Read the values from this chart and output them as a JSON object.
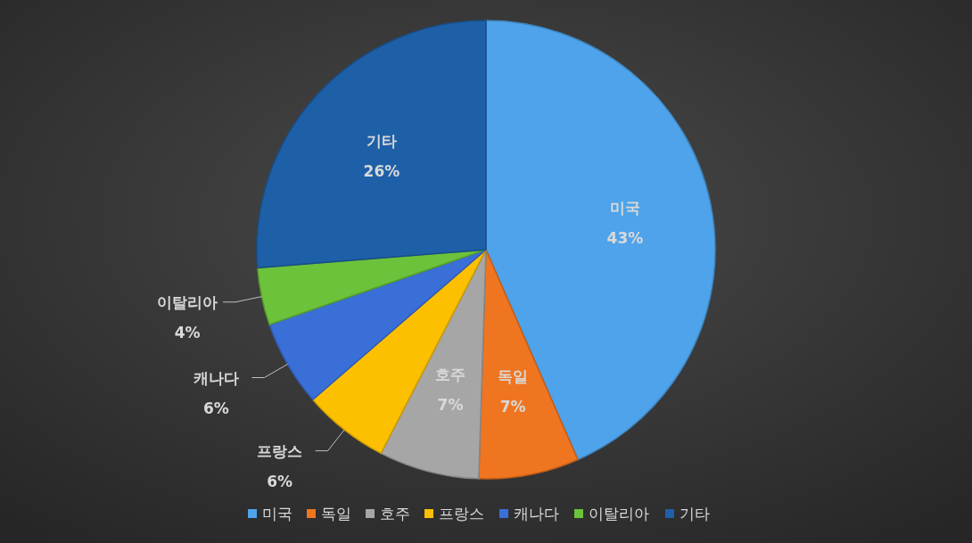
{
  "chart_data": {
    "type": "pie",
    "categories": [
      "미국",
      "독일",
      "호주",
      "프랑스",
      "캐나다",
      "이탈리아",
      "기타"
    ],
    "values": [
      43,
      7,
      7,
      6,
      6,
      4,
      26
    ],
    "value_labels": [
      "43%",
      "7%",
      "7%",
      "6%",
      "6%",
      "4%",
      "26%"
    ],
    "colors": [
      "#4ea3ea",
      "#f07520",
      "#a6a6a6",
      "#fcc000",
      "#3a6fd8",
      "#6cc23a",
      "#1e60a8"
    ],
    "legend": "bottom"
  }
}
